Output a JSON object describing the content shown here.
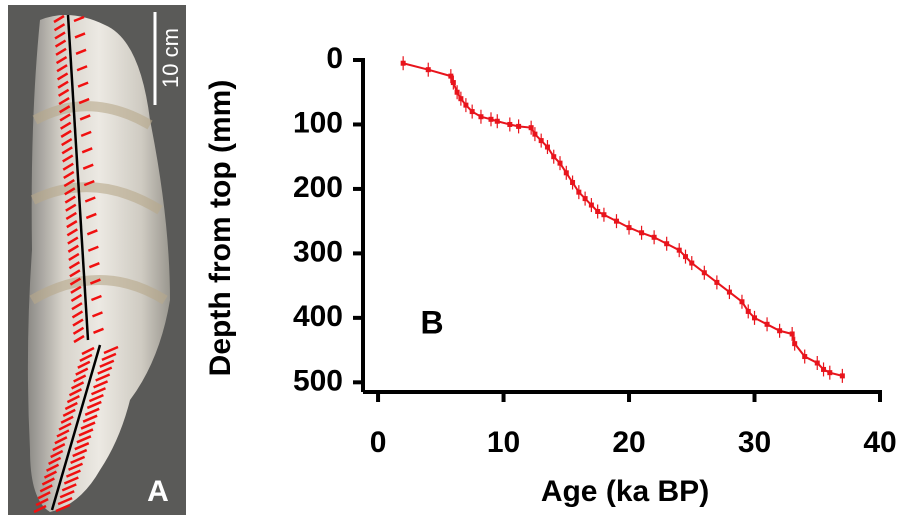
{
  "panel_a": {
    "scale_label": "10 cm",
    "label": "A"
  },
  "chart_data": {
    "type": "line",
    "annotation": "B",
    "x_label": "Age  (ka BP)",
    "y_label": "Depth from top (mm)",
    "x": [
      2,
      4,
      5.8,
      6,
      6.3,
      6.6,
      7,
      7.5,
      8.2,
      9,
      9.5,
      10.5,
      11.2,
      12.2,
      12.5,
      13,
      13.5,
      14,
      14.5,
      15,
      15.5,
      16,
      16.5,
      17,
      17.5,
      18,
      19,
      20,
      21,
      22,
      23,
      24,
      24.5,
      25,
      26,
      27,
      28,
      29,
      29.5,
      30,
      31,
      32,
      33,
      33.2,
      34,
      35,
      35.5,
      36,
      37
    ],
    "series": [
      {
        "color": "#e8141c",
        "values": [
          5,
          15,
          25,
          35,
          50,
          60,
          70,
          80,
          88,
          92,
          95,
          100,
          103,
          105,
          115,
          125,
          135,
          150,
          160,
          175,
          190,
          205,
          215,
          225,
          235,
          240,
          250,
          260,
          268,
          275,
          285,
          295,
          305,
          315,
          330,
          345,
          360,
          375,
          390,
          400,
          410,
          420,
          425,
          440,
          460,
          470,
          480,
          485,
          490
        ]
      }
    ],
    "xlim": [
      -1.2,
      40
    ],
    "xticks": [
      0,
      10,
      20,
      30,
      40
    ],
    "ylim": [
      0,
      515
    ],
    "yticks": [
      0,
      100,
      200,
      300,
      400,
      500
    ],
    "y_inverted": true
  }
}
